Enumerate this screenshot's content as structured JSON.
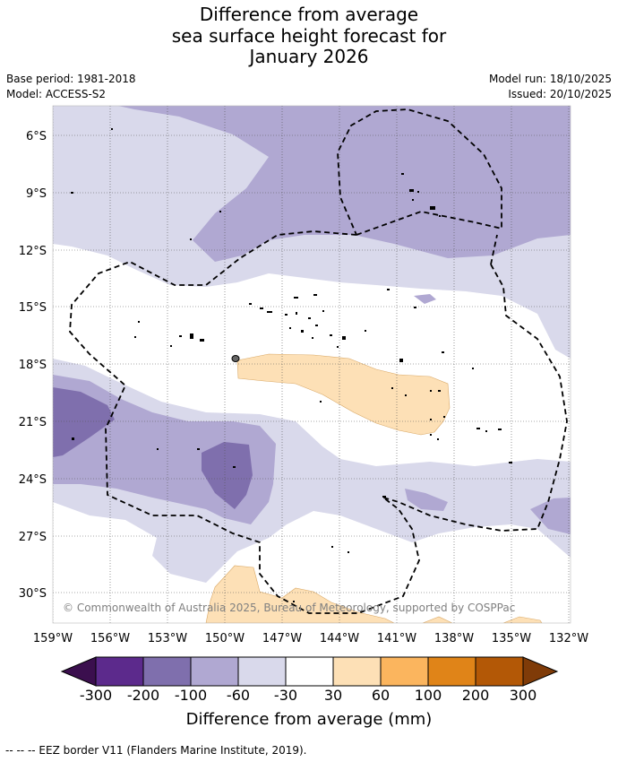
{
  "title": {
    "line1": "Difference from average",
    "line2": "sea surface height forecast for",
    "line3": "January 2026"
  },
  "meta": {
    "base_period": "Base period: 1981-2018",
    "model": "Model: ACCESS-S2",
    "model_run": "Model run: 18/10/2025",
    "issued": "Issued: 20/10/2025"
  },
  "map": {
    "lat_labels": [
      "6°S",
      "9°S",
      "12°S",
      "15°S",
      "18°S",
      "21°S",
      "24°S",
      "27°S",
      "30°S"
    ],
    "lon_labels": [
      "159°W",
      "156°W",
      "153°W",
      "150°W",
      "147°W",
      "144°W",
      "141°W",
      "138°W",
      "135°W",
      "132°W"
    ],
    "copyright": "© Commonwealth of Australia 2025, Bureau of Meteorology, supported by COSPPac"
  },
  "colorbar": {
    "title": "Difference from average (mm)",
    "tick_labels": [
      "-300",
      "-200",
      "-100",
      "-60",
      "-30",
      "30",
      "60",
      "100",
      "200",
      "300"
    ],
    "colors": {
      "under": "#3b0f4e",
      "c1": "#5c2a8c",
      "c2": "#7f6fad",
      "c3": "#b0a8d2",
      "c4": "#d9d9eb",
      "c5": "#ffffff",
      "c6": "#fde0b6",
      "c7": "#fbb55e",
      "c8": "#e08418",
      "c9": "#b35806",
      "over": "#7f3b08"
    }
  },
  "legend": {
    "eez": "--  --  -- EEZ border V11 (Flanders Marine Institute, 2019)."
  }
}
